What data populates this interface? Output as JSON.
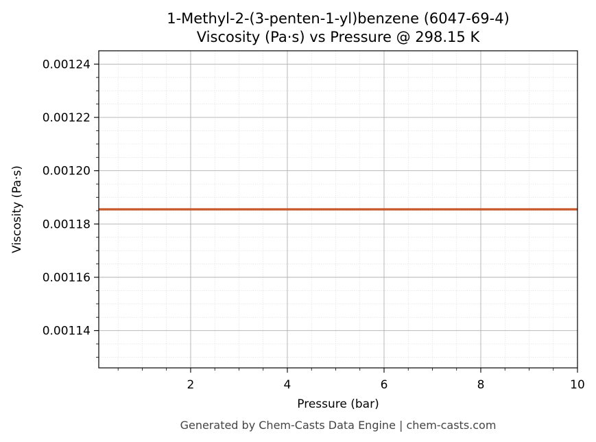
{
  "chart_data": {
    "type": "line",
    "title": "1-Methyl-2-(3-penten-1-yl)benzene (6047-69-4)",
    "subtitle": "Viscosity (Pa·s) vs Pressure @ 298.15 K",
    "xlabel": "Pressure (bar)",
    "ylabel": "Viscosity (Pa·s)",
    "xlim": [
      0.1,
      10
    ],
    "ylim": [
      0.001126,
      0.001245
    ],
    "x_ticks": [
      2,
      4,
      6,
      8,
      10
    ],
    "x_tick_labels": [
      "2",
      "4",
      "6",
      "8",
      "10"
    ],
    "y_ticks": [
      0.00114,
      0.00116,
      0.00118,
      0.0012,
      0.00122,
      0.00124
    ],
    "y_tick_labels": [
      "0.00114",
      "0.00116",
      "0.00118",
      "0.00120",
      "0.00122",
      "0.00124"
    ],
    "grid": true,
    "minor_grid": true,
    "series": [
      {
        "color": "#c8572a",
        "x": [
          0.1,
          1,
          2,
          3,
          4,
          5,
          6,
          7,
          8,
          9,
          10
        ],
        "y": [
          0.0011855,
          0.0011855,
          0.0011855,
          0.0011855,
          0.0011855,
          0.0011855,
          0.0011855,
          0.0011855,
          0.0011855,
          0.0011855,
          0.0011855
        ]
      }
    ]
  },
  "footer": {
    "text": "Generated by Chem-Casts Data Engine | chem-casts.com"
  }
}
